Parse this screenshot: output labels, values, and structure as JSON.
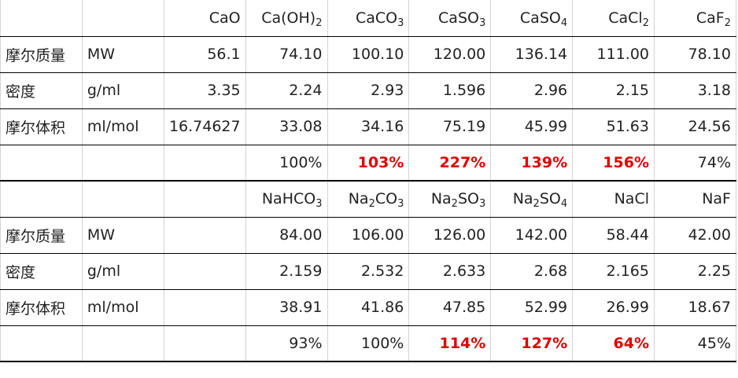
{
  "sections": [
    {
      "header": [
        null,
        null,
        [
          "CaO"
        ],
        [
          "Ca(OH)",
          "2"
        ],
        [
          "CaCO",
          "3"
        ],
        [
          "CaSO",
          "3"
        ],
        [
          "CaSO",
          "4"
        ],
        [
          "CaCl",
          "2"
        ],
        [
          "CaF",
          "2"
        ]
      ],
      "rows": [
        [
          "摩尔质量",
          "MW",
          "56.1",
          "74.10",
          "100.10",
          "120.00",
          "136.14",
          "111.00",
          "78.10"
        ],
        [
          "密度",
          "g/ml",
          "3.35",
          "2.24",
          "2.93",
          "1.596",
          "2.96",
          "2.15",
          "3.18"
        ],
        [
          "摩尔体积",
          "ml/mol",
          "16.74627",
          "33.08",
          "34.16",
          "75.19",
          "45.99",
          "51.63",
          "24.56"
        ],
        [
          null,
          null,
          null,
          {
            "text": "100%",
            "red": false
          },
          {
            "text": "103%",
            "red": true
          },
          {
            "text": "227%",
            "red": true
          },
          {
            "text": "139%",
            "red": true
          },
          {
            "text": "156%",
            "red": true
          },
          {
            "text": "74%",
            "red": false
          }
        ]
      ]
    },
    {
      "header": [
        null,
        null,
        null,
        [
          "NaHCO",
          "3"
        ],
        [
          "Na",
          "2",
          "CO",
          "3"
        ],
        [
          "Na",
          "2",
          "SO",
          "3"
        ],
        [
          "Na",
          "2",
          "SO",
          "4"
        ],
        [
          "NaCl"
        ],
        [
          "NaF"
        ]
      ],
      "rows": [
        [
          "摩尔质量",
          "MW",
          null,
          "84.00",
          "106.00",
          "126.00",
          "142.00",
          "58.44",
          "42.00"
        ],
        [
          "密度",
          "g/ml",
          null,
          "2.159",
          "2.532",
          "2.633",
          "2.68",
          "2.165",
          "2.25"
        ],
        [
          "摩尔体积",
          "ml/mol",
          null,
          "38.91",
          "41.86",
          "47.85",
          "52.99",
          "26.99",
          "18.67"
        ],
        [
          null,
          null,
          null,
          {
            "text": "93%",
            "red": false
          },
          {
            "text": "100%",
            "red": false
          },
          {
            "text": "114%",
            "red": true
          },
          {
            "text": "127%",
            "red": true
          },
          {
            "text": "64%",
            "red": true
          },
          {
            "text": "45%",
            "red": false
          }
        ]
      ]
    }
  ]
}
